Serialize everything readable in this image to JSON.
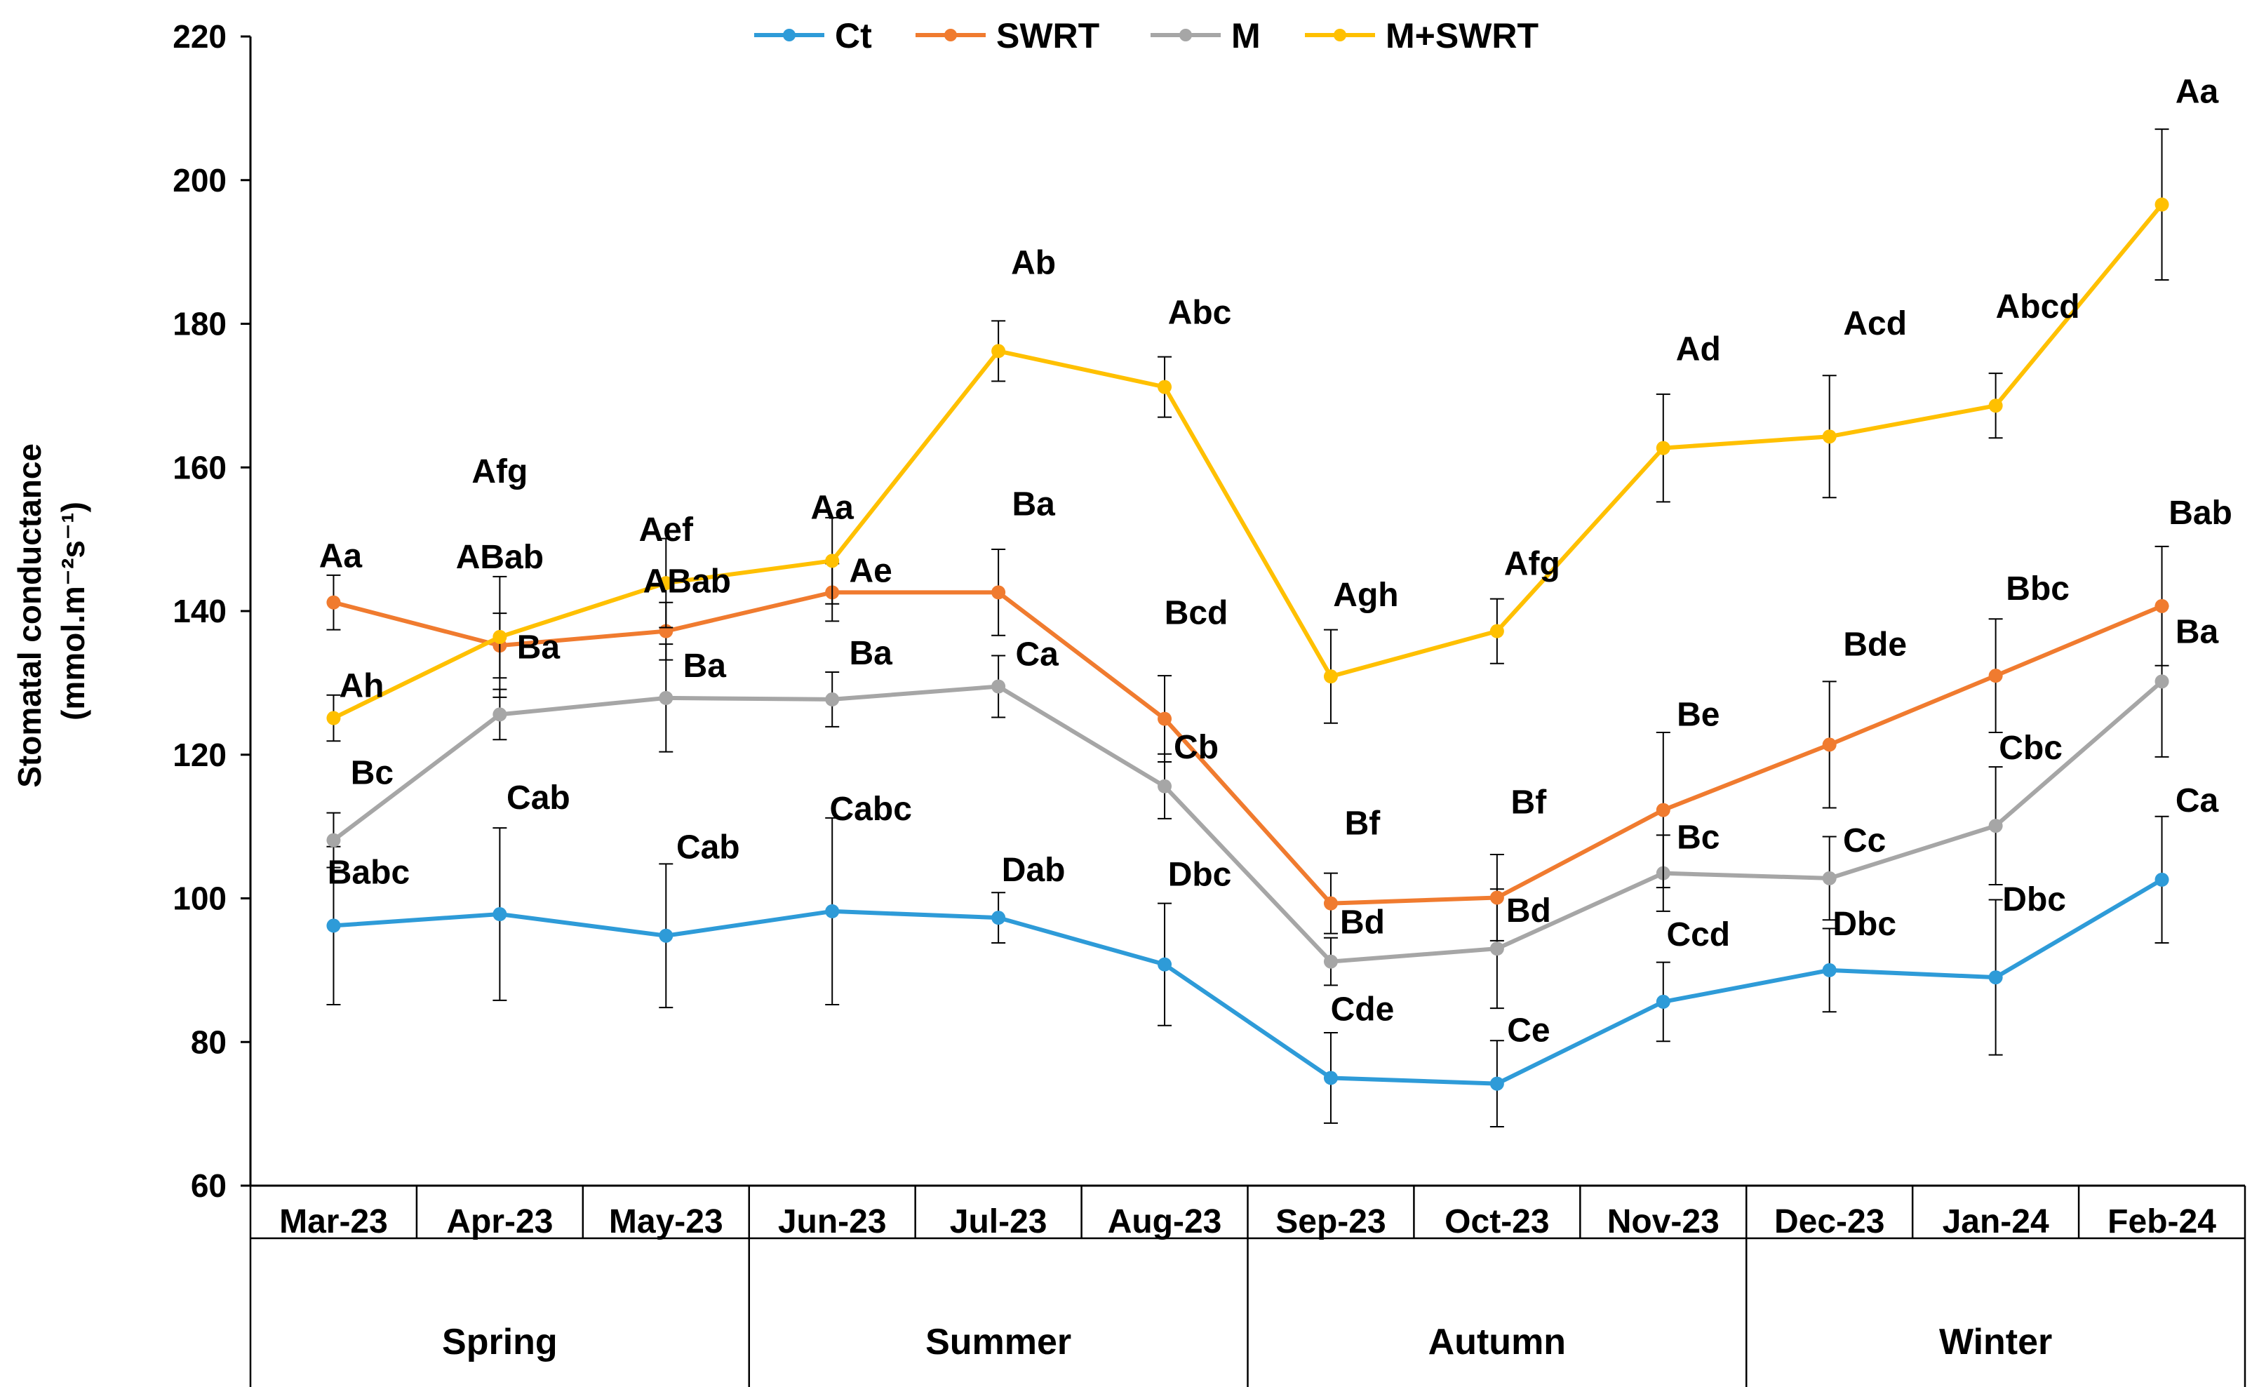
{
  "chart_data": {
    "type": "line",
    "title": "",
    "xlabel": "",
    "ylabel": "Stomatal conductance (mmol.m⁻²s⁻¹)",
    "ylabel_line1": "Stomatal conductance",
    "ylabel_line2": "(mmol.m⁻²s⁻¹)",
    "ylim": [
      60,
      220
    ],
    "yticks": [
      "60",
      "80",
      "100",
      "120",
      "140",
      "160",
      "180",
      "200",
      "220"
    ],
    "categories": [
      "Mar-23",
      "Apr-23",
      "May-23",
      "Jun-23",
      "Jul-23",
      "Aug-23",
      "Sep-23",
      "Oct-23",
      "Nov-23",
      "Dec-23",
      "Jan-24",
      "Feb-24"
    ],
    "seasons": [
      {
        "name": "Spring",
        "span": 3
      },
      {
        "name": "Summer",
        "span": 3
      },
      {
        "name": "Autumn",
        "span": 3
      },
      {
        "name": "Winter",
        "span": 3
      }
    ],
    "legend_position": "top",
    "series": [
      {
        "name": "Ct",
        "color": "#2E9BD8",
        "values": [
          96.2,
          97.8,
          94.8,
          98.2,
          97.3,
          90.8,
          75.0,
          74.2,
          85.6,
          90.0,
          89.0,
          102.6
        ],
        "errors": [
          11.0,
          12.0,
          10.0,
          13.0,
          3.5,
          8.5,
          6.3,
          6.0,
          5.5,
          5.8,
          10.8,
          8.8
        ],
        "labels": [
          "Babc",
          "Cab",
          "Cab",
          "Cabc",
          "Dab",
          "Dbc",
          "Cde",
          "Ce",
          "Ccd",
          "Dbc",
          "Dbc",
          "Ca"
        ]
      },
      {
        "name": "SWRT",
        "color": "#F07B2F",
        "values": [
          141.2,
          135.2,
          137.2,
          142.6,
          142.6,
          125.0,
          99.3,
          100.1,
          112.3,
          121.4,
          131.0,
          140.7
        ],
        "errors": [
          3.8,
          4.5,
          4.0,
          4.0,
          6.0,
          6.0,
          4.2,
          6.0,
          10.8,
          8.8,
          7.9,
          8.3
        ],
        "labels": [
          "Aa",
          "ABab",
          "ABab",
          "Ae",
          "Ba",
          "Bcd",
          "Bf",
          "Bf",
          "Be",
          "Bde",
          "Bbc",
          "Bab"
        ]
      },
      {
        "name": "M",
        "color": "#A6A6A6",
        "values": [
          108.1,
          125.6,
          127.9,
          127.7,
          129.5,
          115.6,
          91.2,
          93.0,
          103.5,
          102.8,
          110.1,
          130.2
        ],
        "errors": [
          3.8,
          3.5,
          7.5,
          3.8,
          4.3,
          4.5,
          3.3,
          8.3,
          5.3,
          5.8,
          8.2,
          10.5
        ],
        "labels": [
          "Bc",
          "Ba",
          "Ba",
          "Ba",
          "Ca",
          "Cb",
          "Bd",
          "Bd",
          "Bc",
          "Cc",
          "Cbc",
          "Ba"
        ]
      },
      {
        "name": "M+SWRT",
        "color": "#FFC000",
        "values": [
          125.1,
          136.4,
          143.9,
          147.0,
          176.2,
          171.2,
          130.9,
          137.2,
          162.7,
          164.3,
          168.6,
          196.6
        ],
        "errors": [
          3.2,
          8.4,
          6.2,
          6.0,
          4.2,
          4.2,
          6.5,
          4.5,
          7.5,
          8.5,
          4.5,
          10.5
        ],
        "labels": [
          "Ah",
          "Afg",
          "Aef",
          "Aa",
          "Ab",
          "Abc",
          "Agh",
          "Afg",
          "Ad",
          "Acd",
          "Abcd",
          "Aa"
        ]
      }
    ]
  }
}
